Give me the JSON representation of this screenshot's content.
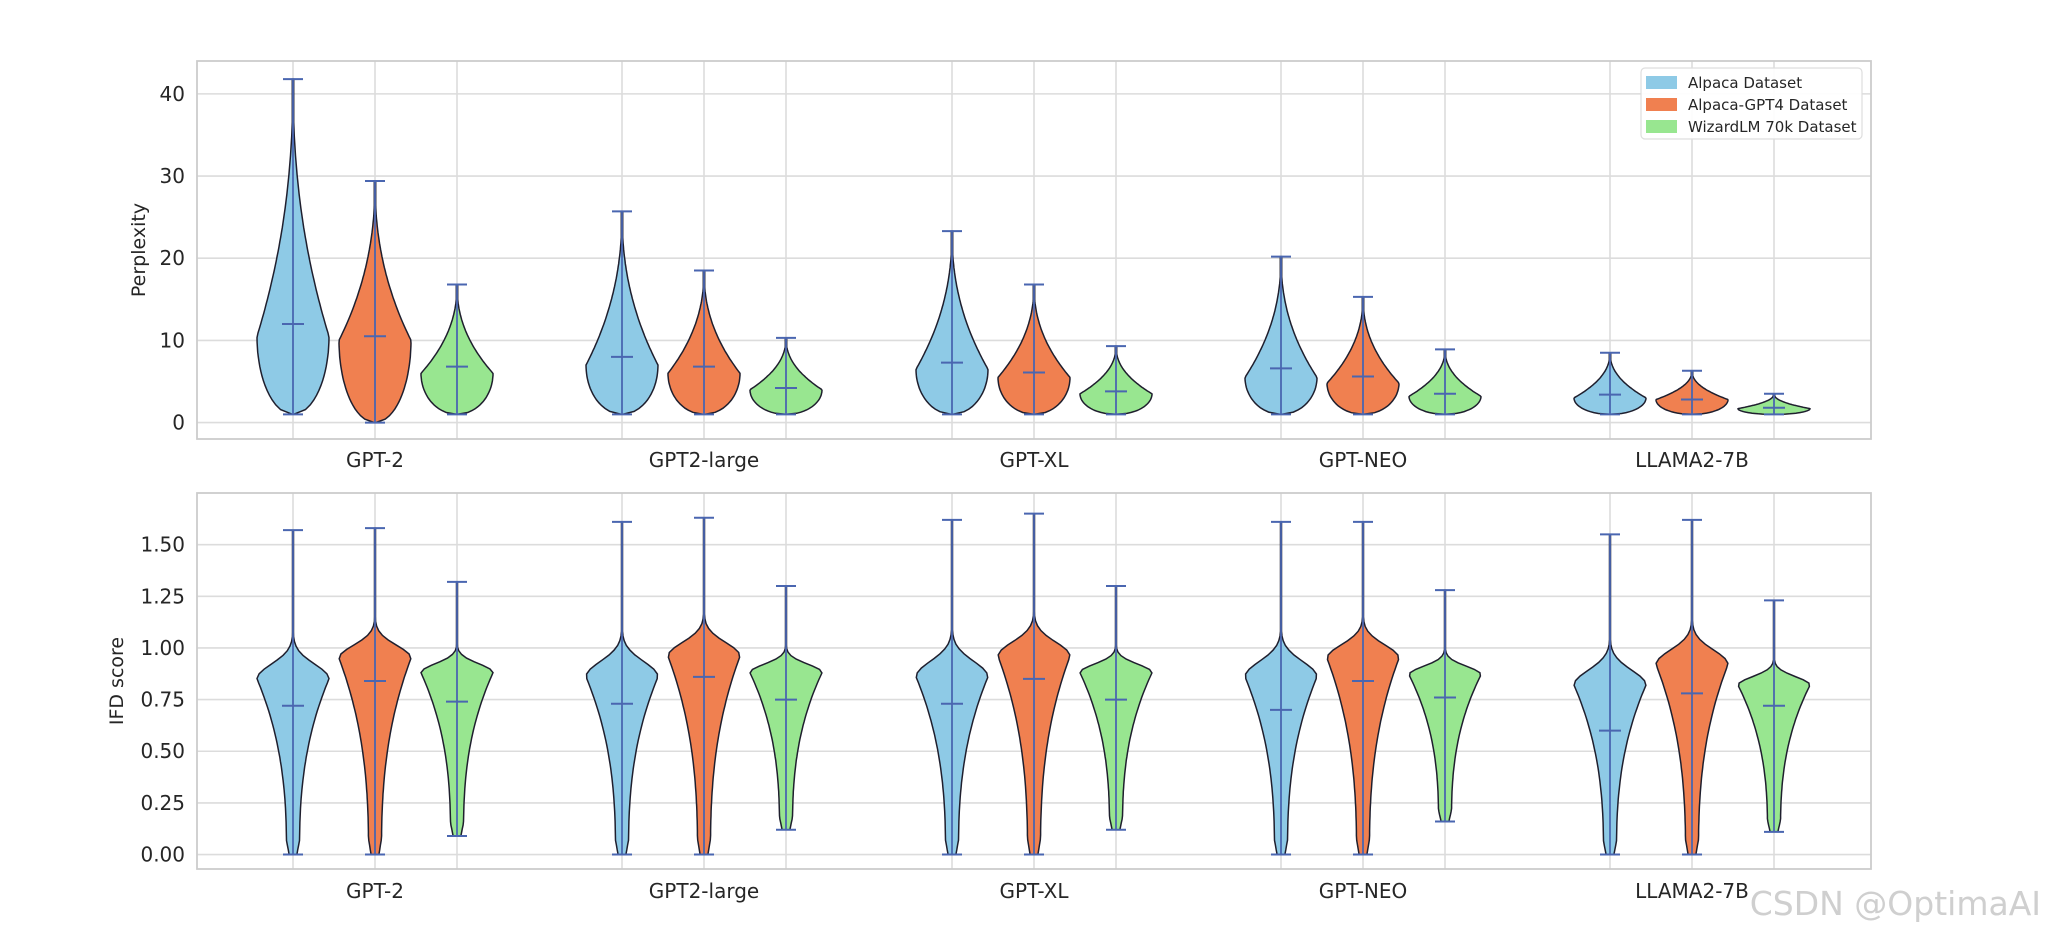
{
  "chart_data": [
    {
      "type": "violin",
      "ylabel": "Perplexity",
      "ylim": [
        -2,
        44
      ],
      "yticks": [
        0,
        10,
        20,
        30,
        40
      ],
      "ytick_labels": [
        "0",
        "10",
        "20",
        "30",
        "40"
      ],
      "grid": true,
      "legend_position": "top-right",
      "categories": [
        "GPT-2",
        "GPT2-large",
        "GPT-XL",
        "GPT-NEO",
        "LLAMA2-7B"
      ],
      "series": [
        {
          "name": "Alpaca Dataset",
          "color": "#8ecae6",
          "min": [
            1,
            1,
            1,
            1,
            1
          ],
          "max": [
            41.8,
            25.7,
            23.3,
            20.2,
            8.5
          ],
          "median": [
            12,
            8,
            7.3,
            6.6,
            3.4
          ],
          "mode": [
            10.5,
            7,
            6.5,
            5.5,
            3
          ]
        },
        {
          "name": "Alpaca-GPT4 Dataset",
          "color": "#f08050",
          "min": [
            0,
            1,
            1,
            1,
            1
          ],
          "max": [
            29.4,
            18.5,
            16.8,
            15.3,
            6.3
          ],
          "median": [
            10.5,
            6.8,
            6.1,
            5.6,
            2.8
          ],
          "mode": [
            10,
            6,
            5.5,
            4.8,
            2.8
          ]
        },
        {
          "name": "WizardLM 70k Dataset",
          "color": "#98e690",
          "min": [
            1,
            1,
            1,
            1,
            1
          ],
          "max": [
            16.8,
            10.3,
            9.3,
            8.9,
            3.5
          ],
          "median": [
            6.8,
            4.2,
            3.8,
            3.5,
            1.8
          ],
          "mode": [
            6,
            4,
            3.5,
            3.2,
            1.7
          ]
        }
      ]
    },
    {
      "type": "violin",
      "ylabel": "IFD score",
      "ylim": [
        -0.07,
        1.75
      ],
      "yticks": [
        0,
        0.25,
        0.5,
        0.75,
        1.0,
        1.25,
        1.5
      ],
      "ytick_labels": [
        "0.00",
        "0.25",
        "0.50",
        "0.75",
        "1.00",
        "1.25",
        "1.50"
      ],
      "grid": true,
      "categories": [
        "GPT-2",
        "GPT2-large",
        "GPT-XL",
        "GPT-NEO",
        "LLAMA2-7B"
      ],
      "series": [
        {
          "name": "Alpaca Dataset",
          "color": "#8ecae6",
          "min": [
            0,
            0,
            0,
            0,
            0
          ],
          "max": [
            1.57,
            1.61,
            1.62,
            1.61,
            1.55
          ],
          "median": [
            0.72,
            0.73,
            0.73,
            0.7,
            0.6
          ],
          "mode": [
            0.85,
            0.86,
            0.86,
            0.86,
            0.82
          ]
        },
        {
          "name": "Alpaca-GPT4 Dataset",
          "color": "#f08050",
          "min": [
            0,
            0,
            0,
            0,
            0
          ],
          "max": [
            1.58,
            1.63,
            1.65,
            1.61,
            1.62
          ],
          "median": [
            0.84,
            0.86,
            0.85,
            0.84,
            0.78
          ],
          "mode": [
            0.95,
            0.96,
            0.96,
            0.95,
            0.92
          ]
        },
        {
          "name": "WizardLM 70k Dataset",
          "color": "#98e690",
          "min": [
            0.09,
            0.12,
            0.12,
            0.16,
            0.11
          ],
          "max": [
            1.32,
            1.3,
            1.3,
            1.28,
            1.23
          ],
          "median": [
            0.74,
            0.75,
            0.75,
            0.76,
            0.72
          ],
          "mode": [
            0.88,
            0.88,
            0.88,
            0.87,
            0.82
          ]
        }
      ]
    }
  ],
  "watermark": "CSDN @OptimaAI"
}
